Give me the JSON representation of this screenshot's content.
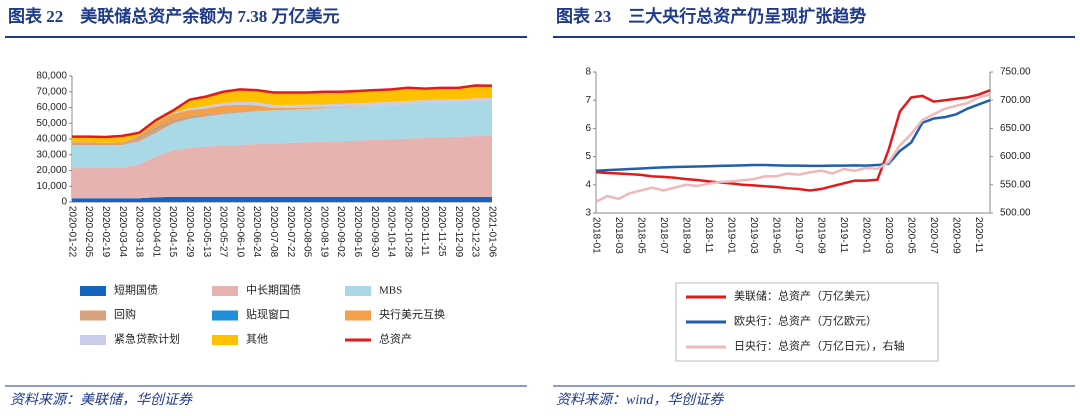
{
  "chart_data": [
    {
      "type": "area",
      "title": "图表 22　美联储总资产余额为 7.38 万亿美元",
      "source": "资料来源：美联储，华创证券",
      "categories": [
        "2020-01-22",
        "2020-02-05",
        "2020-02-19",
        "2020-03-04",
        "2020-03-18",
        "2020-04-01",
        "2020-04-15",
        "2020-04-29",
        "2020-05-13",
        "2020-05-27",
        "2020-06-10",
        "2020-06-24",
        "2020-07-08",
        "2020-07-22",
        "2020-08-05",
        "2020-08-19",
        "2020-09-02",
        "2020-09-16",
        "2020-09-30",
        "2020-10-14",
        "2020-10-28",
        "2020-11-11",
        "2020-11-25",
        "2020-12-09",
        "2020-12-23",
        "2021-01-06"
      ],
      "ylim": [
        0,
        80000
      ],
      "yticks": [
        0,
        {
          "value": 10000,
          "label": "10,000"
        },
        {
          "value": 20000,
          "label": "20,000"
        },
        {
          "value": 30000,
          "label": "30,000"
        },
        {
          "value": 40000,
          "label": "40,000"
        },
        {
          "value": 50000,
          "label": "50,000"
        },
        {
          "value": 60000,
          "label": "60,000"
        },
        {
          "value": 70000,
          "label": "70,000"
        },
        {
          "value": 80000,
          "label": "80,000"
        }
      ],
      "grid": false,
      "series": [
        {
          "name": "短期国债",
          "color": "#1565c0",
          "values": [
            2420,
            2420,
            2420,
            2420,
            2420,
            3000,
            3260,
            3260,
            3260,
            3260,
            3260,
            3260,
            3260,
            3260,
            3260,
            3260,
            3260,
            3260,
            3260,
            3260,
            3260,
            3260,
            3260,
            3260,
            3260,
            3260
          ]
        },
        {
          "name": "中长期国债",
          "color": "#e6b3b0",
          "values": [
            19100,
            19200,
            19300,
            19400,
            21500,
            26000,
            29500,
            31000,
            32000,
            32500,
            33000,
            33500,
            33900,
            34300,
            34700,
            35000,
            35400,
            35800,
            36200,
            36600,
            37000,
            37400,
            37800,
            38200,
            38600,
            38900
          ]
        },
        {
          "name": "MBS",
          "color": "#a9d8e6",
          "values": [
            14500,
            14400,
            14300,
            14400,
            14600,
            15000,
            17000,
            18500,
            19000,
            20000,
            20500,
            20800,
            20900,
            21000,
            21100,
            21200,
            21300,
            21500,
            21600,
            21700,
            21900,
            22000,
            22000,
            21800,
            21900,
            21900
          ]
        },
        {
          "name": "回购",
          "color": "#d8a27e",
          "values": [
            2000,
            1800,
            1500,
            1600,
            2500,
            2400,
            1500,
            1000,
            1000,
            800,
            500,
            300,
            100,
            50,
            20,
            10,
            10,
            0,
            0,
            0,
            0,
            0,
            0,
            0,
            0,
            0
          ]
        },
        {
          "name": "贴现窗口",
          "color": "#1e8fd8",
          "values": [
            10,
            10,
            10,
            10,
            300,
            400,
            300,
            300,
            200,
            100,
            100,
            50,
            50,
            30,
            20,
            10,
            10,
            10,
            10,
            10,
            10,
            10,
            10,
            10,
            10,
            10
          ]
        },
        {
          "name": "央行美元互换",
          "color": "#f4a04a",
          "values": [
            40,
            40,
            40,
            40,
            1000,
            3500,
            4400,
            4300,
            4000,
            4500,
            4500,
            3500,
            1500,
            1100,
            800,
            500,
            400,
            200,
            100,
            100,
            100,
            100,
            100,
            100,
            100,
            100
          ]
        },
        {
          "name": "紧急贷款计划",
          "color": "#c9cde9",
          "values": [
            0,
            0,
            0,
            0,
            0,
            200,
            500,
            1200,
            1500,
            1700,
            1800,
            1900,
            1900,
            1900,
            1900,
            1900,
            1900,
            1900,
            1900,
            1900,
            1900,
            1900,
            1900,
            1900,
            1900,
            1900
          ]
        },
        {
          "name": "其他",
          "color": "#ffc000",
          "values": [
            3430,
            3630,
            3730,
            4130,
            1680,
            1500,
            1540,
            5440,
            6040,
            7140,
            7840,
            7690,
            7890,
            7860,
            7700,
            8120,
            7720,
            7830,
            7930,
            7930,
            8330,
            7330,
            7430,
            7230,
            8230,
            7730
          ]
        },
        {
          "name": "总资产",
          "color": "#e31a1c",
          "type": "line",
          "values": [
            41500,
            41500,
            41300,
            42000,
            44000,
            52000,
            58000,
            65000,
            67000,
            70000,
            71500,
            71000,
            69500,
            69500,
            69500,
            70000,
            70000,
            70500,
            71000,
            71500,
            72500,
            72000,
            72500,
            72500,
            74000,
            73800
          ]
        }
      ]
    },
    {
      "type": "line",
      "title": "图表 23　三大央行总资产仍呈现扩张趋势",
      "source": "资料来源：wind，华创证券",
      "categories": [
        "2018-01",
        null,
        "2018-03",
        null,
        "2018-05",
        null,
        "2018-07",
        null,
        "2018-09",
        null,
        "2018-11",
        null,
        "2019-01",
        null,
        "2019-03",
        null,
        "2019-05",
        null,
        "2019-07",
        null,
        "2019-09",
        null,
        "2019-11",
        null,
        "2020-01",
        null,
        "2020-03",
        null,
        "2020-05",
        null,
        "2020-07",
        null,
        "2020-09",
        null,
        "2020-11",
        null
      ],
      "ylim": [
        3,
        8
      ],
      "yticks": [
        3,
        4,
        5,
        6,
        7,
        8
      ],
      "y2lim": [
        500,
        750
      ],
      "y2ticks": [
        {
          "value": 500,
          "label": "500.00"
        },
        {
          "value": 550,
          "label": "550.00"
        },
        {
          "value": 600,
          "label": "600.00"
        },
        {
          "value": 650,
          "label": "650.00"
        },
        {
          "value": 700,
          "label": "700.00"
        },
        {
          "value": 750,
          "label": "750.00"
        }
      ],
      "grid": false,
      "series": [
        {
          "name": "美联储：总资产（万亿美元）",
          "color": "#e31a1c",
          "values": [
            4.45,
            4.42,
            4.4,
            4.38,
            4.35,
            4.3,
            4.28,
            4.25,
            4.2,
            4.17,
            4.12,
            4.08,
            4.05,
            4.0,
            3.98,
            3.95,
            3.92,
            3.88,
            3.85,
            3.8,
            3.85,
            3.95,
            4.05,
            4.15,
            4.15,
            4.18,
            5.25,
            6.6,
            7.1,
            7.15,
            6.95,
            7.0,
            7.05,
            7.1,
            7.2,
            7.35
          ]
        },
        {
          "name": "欧央行：总资产（万亿欧元）",
          "color": "#1f5fae",
          "values": [
            4.5,
            4.52,
            4.54,
            4.56,
            4.58,
            4.6,
            4.62,
            4.63,
            4.64,
            4.65,
            4.66,
            4.67,
            4.68,
            4.69,
            4.7,
            4.7,
            4.69,
            4.68,
            4.68,
            4.67,
            4.67,
            4.68,
            4.68,
            4.69,
            4.68,
            4.7,
            4.75,
            5.2,
            5.5,
            6.2,
            6.35,
            6.4,
            6.5,
            6.7,
            6.85,
            7.0
          ]
        },
        {
          "name": "日央行：总资产（万亿日元），右轴",
          "color": "#f0b8b8",
          "axis": "y2",
          "values": [
            520,
            530,
            525,
            535,
            540,
            545,
            540,
            545,
            550,
            548,
            552,
            555,
            556,
            558,
            560,
            565,
            565,
            570,
            568,
            572,
            575,
            570,
            578,
            575,
            580,
            578,
            590,
            620,
            640,
            665,
            675,
            685,
            690,
            695,
            705,
            710
          ]
        }
      ]
    }
  ]
}
